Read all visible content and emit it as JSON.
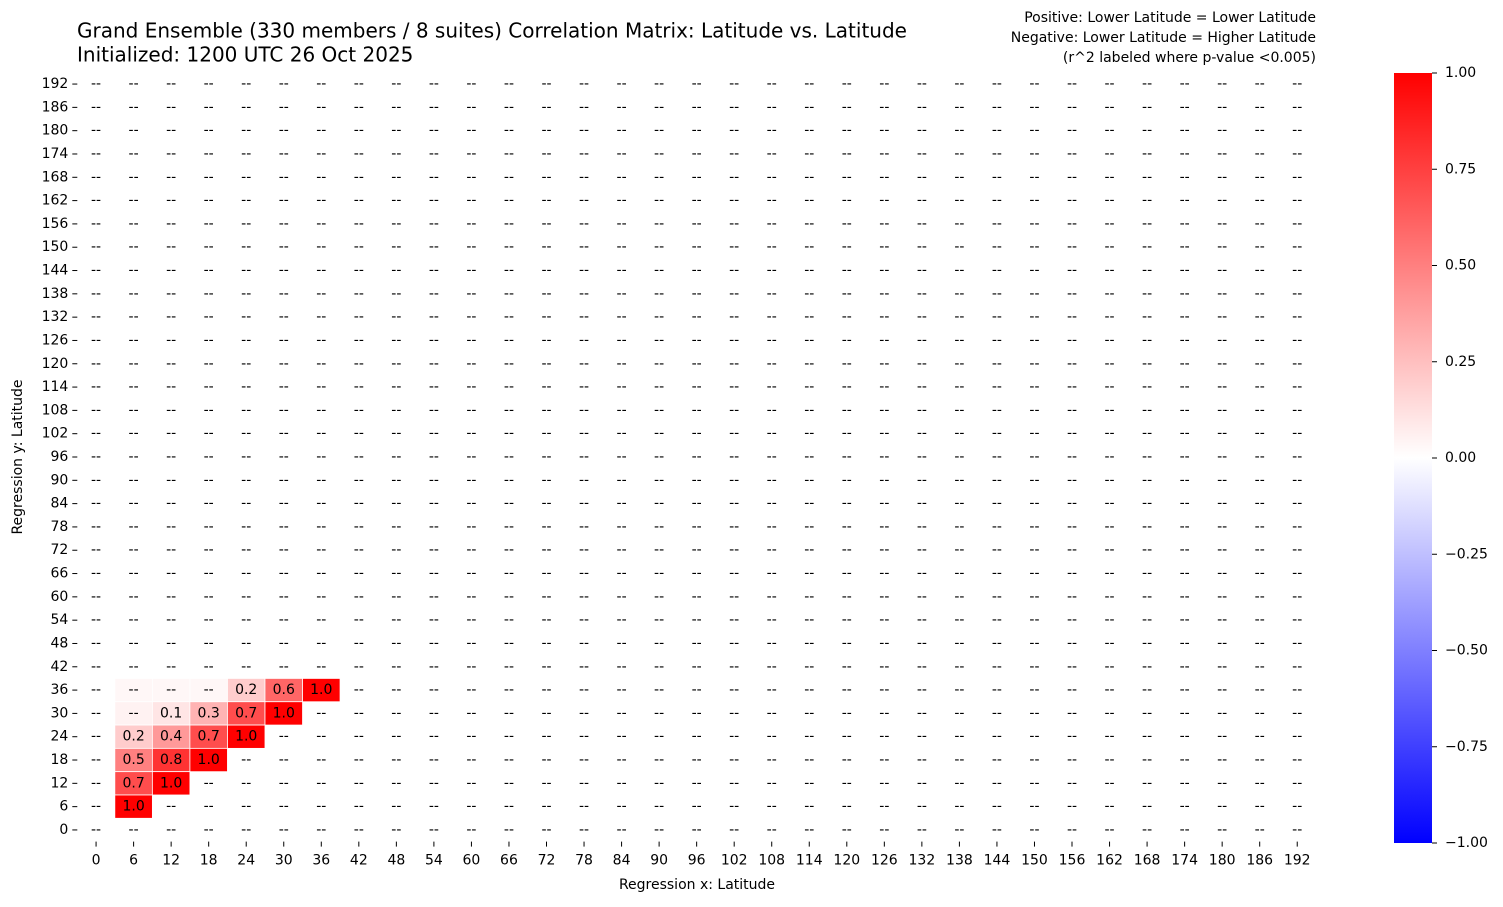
{
  "chart_data": {
    "type": "heatmap",
    "title": "Grand Ensemble (330 members / 8 suites) Correlation Matrix: Latitude vs. Latitude",
    "subtitle": "Initialized: 1200 UTC 26 Oct 2025",
    "annotations": [
      "Positive: Lower Latitude = Lower Latitude",
      "Negative: Lower Latitude = Higher Latitude",
      "(r^2 labeled where p-value <0.005)"
    ],
    "x_label": "Regression x: Latitude",
    "y_label": "Regression y: Latitude",
    "x": [
      0,
      6,
      12,
      18,
      24,
      30,
      36,
      42,
      48,
      54,
      60,
      66,
      72,
      78,
      84,
      90,
      96,
      102,
      108,
      114,
      120,
      126,
      132,
      138,
      144,
      150,
      156,
      162,
      168,
      174,
      180,
      186,
      192
    ],
    "y": [
      0,
      6,
      12,
      18,
      24,
      30,
      36,
      42,
      48,
      54,
      60,
      66,
      72,
      78,
      84,
      90,
      96,
      102,
      108,
      114,
      120,
      126,
      132,
      138,
      144,
      150,
      156,
      162,
      168,
      174,
      180,
      186,
      192
    ],
    "missing_label": "--",
    "cells": [
      {
        "x": 6,
        "y": 36,
        "value": 0.03,
        "label": "--"
      },
      {
        "x": 12,
        "y": 36,
        "value": 0.03,
        "label": "--"
      },
      {
        "x": 18,
        "y": 36,
        "value": 0.03,
        "label": "--"
      },
      {
        "x": 24,
        "y": 36,
        "value": 0.2,
        "label": "0.2"
      },
      {
        "x": 30,
        "y": 36,
        "value": 0.6,
        "label": "0.6"
      },
      {
        "x": 36,
        "y": 36,
        "value": 1.0,
        "label": "1.0"
      },
      {
        "x": 6,
        "y": 30,
        "value": 0.05,
        "label": "--"
      },
      {
        "x": 12,
        "y": 30,
        "value": 0.1,
        "label": "0.1"
      },
      {
        "x": 18,
        "y": 30,
        "value": 0.3,
        "label": "0.3"
      },
      {
        "x": 24,
        "y": 30,
        "value": 0.7,
        "label": "0.7"
      },
      {
        "x": 30,
        "y": 30,
        "value": 1.0,
        "label": "1.0"
      },
      {
        "x": 6,
        "y": 24,
        "value": 0.2,
        "label": "0.2"
      },
      {
        "x": 12,
        "y": 24,
        "value": 0.4,
        "label": "0.4"
      },
      {
        "x": 18,
        "y": 24,
        "value": 0.7,
        "label": "0.7"
      },
      {
        "x": 24,
        "y": 24,
        "value": 1.0,
        "label": "1.0"
      },
      {
        "x": 6,
        "y": 18,
        "value": 0.5,
        "label": "0.5"
      },
      {
        "x": 12,
        "y": 18,
        "value": 0.8,
        "label": "0.8"
      },
      {
        "x": 18,
        "y": 18,
        "value": 1.0,
        "label": "1.0"
      },
      {
        "x": 6,
        "y": 12,
        "value": 0.7,
        "label": "0.7"
      },
      {
        "x": 12,
        "y": 12,
        "value": 1.0,
        "label": "1.0"
      },
      {
        "x": 6,
        "y": 6,
        "value": 1.0,
        "label": "1.0"
      }
    ],
    "colormap": [
      "#0000ff",
      "#ffffff",
      "#ff0000"
    ],
    "clim": [
      -1,
      1
    ],
    "cticks": [
      {
        "value": -1,
        "label": "−1.00"
      },
      {
        "value": -0.75,
        "label": "−0.75"
      },
      {
        "value": -0.5,
        "label": "−0.50"
      },
      {
        "value": -0.25,
        "label": "−0.25"
      },
      {
        "value": 0,
        "label": "0.00"
      },
      {
        "value": 0.25,
        "label": "0.25"
      },
      {
        "value": 0.5,
        "label": "0.50"
      },
      {
        "value": 0.75,
        "label": "0.75"
      },
      {
        "value": 1,
        "label": "1.00"
      }
    ]
  }
}
